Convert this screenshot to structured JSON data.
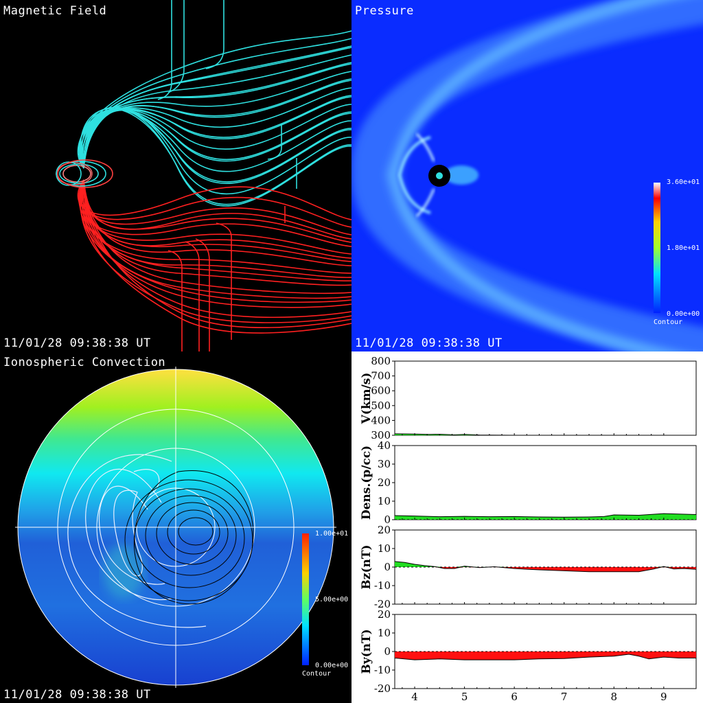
{
  "panels": {
    "magnetic": {
      "title": "Magnetic Field",
      "timestamp": "11/01/28 09:38:38 UT"
    },
    "pressure": {
      "title": "Pressure",
      "timestamp": "11/01/28 09:38:38 UT",
      "colorbar": {
        "max_label": "3.60e+01",
        "mid_label": "1.80e+01",
        "min_label": "0.00e+00",
        "caption": "Contour"
      }
    },
    "ionosphere": {
      "title": "Ionospheric Convection",
      "timestamp": "11/01/28 09:38:38 UT",
      "colorbar": {
        "max_label": "1.00e+01",
        "mid_label": "5.00e+00",
        "min_label": "0.00e+00",
        "caption": "Contour"
      }
    }
  },
  "colors": {
    "northward_field": "#2fe0e0",
    "southward_field": "#ff2020",
    "positive_fill": "#22dd22",
    "negative_fill": "#ff1010",
    "pressure_bg": "#0a2cff"
  },
  "chart_data": [
    {
      "type": "area",
      "ylabel": "V(km/s)",
      "ylim": [
        300,
        800
      ],
      "yticks": [
        "800",
        "700",
        "600",
        "500",
        "400",
        "300"
      ],
      "x": [
        3.6,
        4.0,
        4.3,
        4.5,
        4.8,
        5.0,
        5.3,
        5.5,
        6.0,
        7.0,
        8.0,
        9.0,
        9.65
      ],
      "values": [
        310,
        308,
        306,
        307,
        303,
        306,
        302,
        301,
        300,
        300,
        300,
        300,
        300
      ]
    },
    {
      "type": "area",
      "ylabel": "Dens.(p/cc)",
      "ylim": [
        0,
        40
      ],
      "yticks": [
        "40",
        "30",
        "20",
        "10",
        "0"
      ],
      "x": [
        3.6,
        4.0,
        4.5,
        5.0,
        5.5,
        6.0,
        6.5,
        7.0,
        7.5,
        7.8,
        8.0,
        8.5,
        9.0,
        9.65
      ],
      "values": [
        2.2,
        2.0,
        1.6,
        1.8,
        1.6,
        1.7,
        1.5,
        1.4,
        1.5,
        1.7,
        2.6,
        2.4,
        3.3,
        2.8
      ]
    },
    {
      "type": "area",
      "ylabel": "Bz(nT)",
      "ylim": [
        -20,
        20
      ],
      "yticks": [
        "20",
        "10",
        "0",
        "-10",
        "-20"
      ],
      "x": [
        3.6,
        3.8,
        4.0,
        4.2,
        4.4,
        4.6,
        4.8,
        5.0,
        5.3,
        5.6,
        6.0,
        6.5,
        7.0,
        7.5,
        8.0,
        8.5,
        8.8,
        9.0,
        9.2,
        9.4,
        9.65
      ],
      "values": [
        3.0,
        2.5,
        1.5,
        0.8,
        0.3,
        -0.8,
        -0.8,
        0.5,
        -0.3,
        0.2,
        -0.8,
        -1.5,
        -2.0,
        -2.5,
        -2.5,
        -2.5,
        -1.0,
        0.3,
        -1.0,
        -0.8,
        -1.2
      ]
    },
    {
      "type": "area",
      "ylabel": "By(nT)",
      "ylim": [
        -20,
        20
      ],
      "yticks": [
        "20",
        "10",
        "0",
        "-10",
        "-20"
      ],
      "xlabel": "",
      "xticks": [
        "4",
        "5",
        "6",
        "7",
        "8",
        "9"
      ],
      "x": [
        3.6,
        4.0,
        4.5,
        5.0,
        5.5,
        6.0,
        6.5,
        7.0,
        7.5,
        8.0,
        8.3,
        8.5,
        8.7,
        9.0,
        9.3,
        9.65
      ],
      "values": [
        -3.5,
        -4.5,
        -4.0,
        -4.5,
        -4.5,
        -4.5,
        -4.0,
        -3.8,
        -3.0,
        -2.5,
        -1.5,
        -2.5,
        -4.0,
        -3.0,
        -3.5,
        -3.5
      ]
    }
  ]
}
